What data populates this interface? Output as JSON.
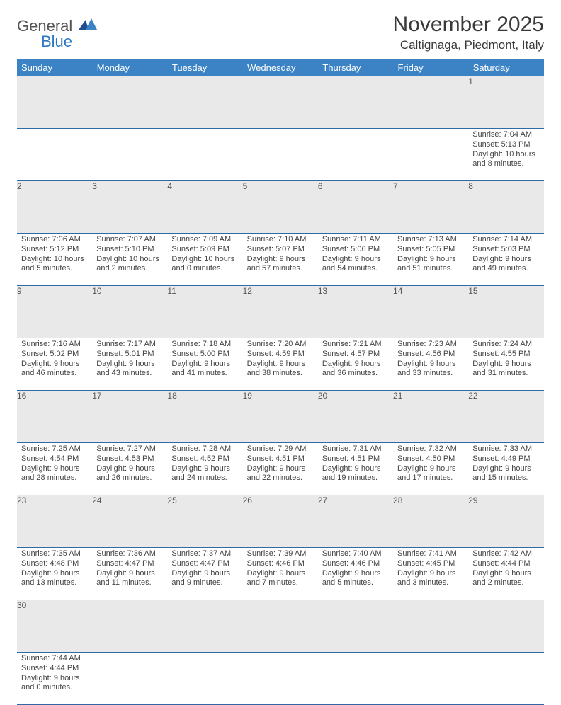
{
  "logo": {
    "word1": "General",
    "word2": "Blue"
  },
  "title": "November 2025",
  "location": "Caltignaga, Piedmont, Italy",
  "colors": {
    "header_bg": "#3b83c5",
    "header_text": "#ffffff",
    "daynum_bg": "#e9e9e9",
    "border": "#2f6aa8",
    "logo_blue": "#2f79c2"
  },
  "day_headers": [
    "Sunday",
    "Monday",
    "Tuesday",
    "Wednesday",
    "Thursday",
    "Friday",
    "Saturday"
  ],
  "weeks": [
    [
      null,
      null,
      null,
      null,
      null,
      null,
      {
        "n": "1",
        "sunrise": "7:04 AM",
        "sunset": "5:13 PM",
        "dl": "10 hours and 8 minutes."
      }
    ],
    [
      {
        "n": "2",
        "sunrise": "7:06 AM",
        "sunset": "5:12 PM",
        "dl": "10 hours and 5 minutes."
      },
      {
        "n": "3",
        "sunrise": "7:07 AM",
        "sunset": "5:10 PM",
        "dl": "10 hours and 2 minutes."
      },
      {
        "n": "4",
        "sunrise": "7:09 AM",
        "sunset": "5:09 PM",
        "dl": "10 hours and 0 minutes."
      },
      {
        "n": "5",
        "sunrise": "7:10 AM",
        "sunset": "5:07 PM",
        "dl": "9 hours and 57 minutes."
      },
      {
        "n": "6",
        "sunrise": "7:11 AM",
        "sunset": "5:06 PM",
        "dl": "9 hours and 54 minutes."
      },
      {
        "n": "7",
        "sunrise": "7:13 AM",
        "sunset": "5:05 PM",
        "dl": "9 hours and 51 minutes."
      },
      {
        "n": "8",
        "sunrise": "7:14 AM",
        "sunset": "5:03 PM",
        "dl": "9 hours and 49 minutes."
      }
    ],
    [
      {
        "n": "9",
        "sunrise": "7:16 AM",
        "sunset": "5:02 PM",
        "dl": "9 hours and 46 minutes."
      },
      {
        "n": "10",
        "sunrise": "7:17 AM",
        "sunset": "5:01 PM",
        "dl": "9 hours and 43 minutes."
      },
      {
        "n": "11",
        "sunrise": "7:18 AM",
        "sunset": "5:00 PM",
        "dl": "9 hours and 41 minutes."
      },
      {
        "n": "12",
        "sunrise": "7:20 AM",
        "sunset": "4:59 PM",
        "dl": "9 hours and 38 minutes."
      },
      {
        "n": "13",
        "sunrise": "7:21 AM",
        "sunset": "4:57 PM",
        "dl": "9 hours and 36 minutes."
      },
      {
        "n": "14",
        "sunrise": "7:23 AM",
        "sunset": "4:56 PM",
        "dl": "9 hours and 33 minutes."
      },
      {
        "n": "15",
        "sunrise": "7:24 AM",
        "sunset": "4:55 PM",
        "dl": "9 hours and 31 minutes."
      }
    ],
    [
      {
        "n": "16",
        "sunrise": "7:25 AM",
        "sunset": "4:54 PM",
        "dl": "9 hours and 28 minutes."
      },
      {
        "n": "17",
        "sunrise": "7:27 AM",
        "sunset": "4:53 PM",
        "dl": "9 hours and 26 minutes."
      },
      {
        "n": "18",
        "sunrise": "7:28 AM",
        "sunset": "4:52 PM",
        "dl": "9 hours and 24 minutes."
      },
      {
        "n": "19",
        "sunrise": "7:29 AM",
        "sunset": "4:51 PM",
        "dl": "9 hours and 22 minutes."
      },
      {
        "n": "20",
        "sunrise": "7:31 AM",
        "sunset": "4:51 PM",
        "dl": "9 hours and 19 minutes."
      },
      {
        "n": "21",
        "sunrise": "7:32 AM",
        "sunset": "4:50 PM",
        "dl": "9 hours and 17 minutes."
      },
      {
        "n": "22",
        "sunrise": "7:33 AM",
        "sunset": "4:49 PM",
        "dl": "9 hours and 15 minutes."
      }
    ],
    [
      {
        "n": "23",
        "sunrise": "7:35 AM",
        "sunset": "4:48 PM",
        "dl": "9 hours and 13 minutes."
      },
      {
        "n": "24",
        "sunrise": "7:36 AM",
        "sunset": "4:47 PM",
        "dl": "9 hours and 11 minutes."
      },
      {
        "n": "25",
        "sunrise": "7:37 AM",
        "sunset": "4:47 PM",
        "dl": "9 hours and 9 minutes."
      },
      {
        "n": "26",
        "sunrise": "7:39 AM",
        "sunset": "4:46 PM",
        "dl": "9 hours and 7 minutes."
      },
      {
        "n": "27",
        "sunrise": "7:40 AM",
        "sunset": "4:46 PM",
        "dl": "9 hours and 5 minutes."
      },
      {
        "n": "28",
        "sunrise": "7:41 AM",
        "sunset": "4:45 PM",
        "dl": "9 hours and 3 minutes."
      },
      {
        "n": "29",
        "sunrise": "7:42 AM",
        "sunset": "4:44 PM",
        "dl": "9 hours and 2 minutes."
      }
    ],
    [
      {
        "n": "30",
        "sunrise": "7:44 AM",
        "sunset": "4:44 PM",
        "dl": "9 hours and 0 minutes."
      },
      null,
      null,
      null,
      null,
      null,
      null
    ]
  ],
  "labels": {
    "sunrise": "Sunrise:",
    "sunset": "Sunset:",
    "daylight": "Daylight:"
  }
}
